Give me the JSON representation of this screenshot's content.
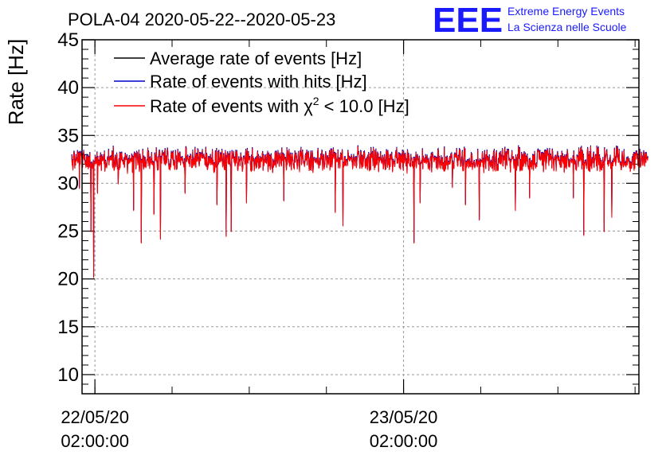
{
  "chart_data": {
    "type": "line",
    "title": "POLA-04 2020-05-22--2020-05-23",
    "ylabel": "Rate [Hz]",
    "xlabel": "",
    "ylim": [
      8,
      45
    ],
    "yticks": [
      10,
      15,
      20,
      25,
      30,
      35,
      40,
      45
    ],
    "xlim_hours": [
      -1.0,
      42.3
    ],
    "xticks": [
      {
        "hour": 0,
        "line1": "22/05/20",
        "line2": "02:00:00"
      },
      {
        "hour": 24,
        "line1": "23/05/20",
        "line2": "02:00:00"
      }
    ],
    "minor_xticks_hours": [
      -6,
      0,
      6,
      12,
      18,
      24,
      30,
      36,
      42
    ],
    "grid": true,
    "legend_position": "top-left",
    "series": [
      {
        "name": "Average rate of events [Hz]",
        "color": "#000000"
      },
      {
        "name": "Rate of events with hits [Hz]",
        "color": "#0000cc"
      },
      {
        "name": "Rate of events with χ² < 10.0 [Hz]",
        "name_main": "Rate of events with χ",
        "name_sup": "2",
        "name_tail": " < 10.0 [Hz]",
        "color": "#ff0000"
      }
    ],
    "data_x_range_hours": [
      -1.8,
      43.0
    ],
    "baseline_rate": 32.5,
    "noise_range": [
      31.0,
      34.0
    ],
    "dips": [
      {
        "hour": -1.2,
        "value": 29.5
      },
      {
        "hour": -0.3,
        "value": 25.0
      },
      {
        "hour": -0.1,
        "value": 20.2
      },
      {
        "hour": 0.2,
        "value": 29.0
      },
      {
        "hour": 1.8,
        "value": 30.0
      },
      {
        "hour": 3.0,
        "value": 27.2
      },
      {
        "hour": 3.6,
        "value": 23.8
      },
      {
        "hour": 4.6,
        "value": 26.8
      },
      {
        "hour": 5.1,
        "value": 24.2
      },
      {
        "hour": 7.0,
        "value": 29.0
      },
      {
        "hour": 9.5,
        "value": 27.8
      },
      {
        "hour": 10.2,
        "value": 24.5
      },
      {
        "hour": 10.6,
        "value": 25.0
      },
      {
        "hour": 11.8,
        "value": 28.0
      },
      {
        "hour": 14.7,
        "value": 28.2
      },
      {
        "hour": 18.7,
        "value": 27.0
      },
      {
        "hour": 19.3,
        "value": 25.6
      },
      {
        "hour": 24.8,
        "value": 23.8
      },
      {
        "hour": 25.3,
        "value": 28.0
      },
      {
        "hour": 27.8,
        "value": 29.6
      },
      {
        "hour": 28.8,
        "value": 27.8
      },
      {
        "hour": 29.9,
        "value": 26.2
      },
      {
        "hour": 32.7,
        "value": 27.2
      },
      {
        "hour": 33.8,
        "value": 28.5
      },
      {
        "hour": 37.2,
        "value": 28.5
      },
      {
        "hour": 38.0,
        "value": 24.6
      },
      {
        "hour": 39.6,
        "value": 25.0
      },
      {
        "hour": 40.2,
        "value": 26.5
      }
    ]
  },
  "logo": {
    "mark": "EEE",
    "line1": "Extreme Energy Events",
    "line2": "La Scienza nelle Scuole",
    "color": "#1a1aff"
  }
}
